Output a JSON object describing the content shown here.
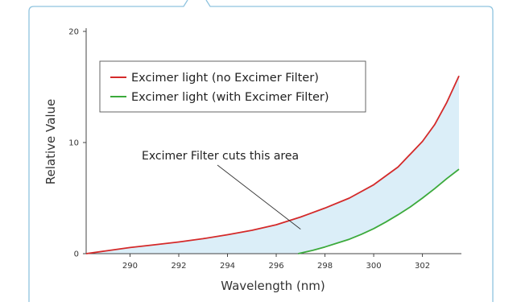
{
  "chart_data": {
    "type": "area",
    "title": "",
    "xlabel": "Wavelength (nm)",
    "ylabel": "Relative Value",
    "xlim": [
      288.2,
      303.6
    ],
    "ylim": [
      0,
      20
    ],
    "x_ticks": [
      290,
      292,
      294,
      296,
      298,
      300,
      302
    ],
    "y_ticks": [
      0,
      10,
      20
    ],
    "grid": false,
    "legend_position": "top-left",
    "series": [
      {
        "name": "Excimer light (no Excimer Filter)",
        "color": "#d42a2a",
        "x": [
          288.2,
          289,
          290,
          291,
          292,
          293,
          294,
          295,
          296,
          297,
          298,
          299,
          300,
          301,
          302,
          302.5,
          303,
          303.5
        ],
        "y": [
          0,
          0.25,
          0.55,
          0.8,
          1.05,
          1.35,
          1.7,
          2.1,
          2.6,
          3.3,
          4.1,
          5.0,
          6.2,
          7.8,
          10.1,
          11.6,
          13.6,
          16.0
        ]
      },
      {
        "name": "Excimer light (with Excimer Filter)",
        "color": "#3caa3c",
        "x": [
          296.9,
          297.5,
          298,
          298.5,
          299,
          299.5,
          300,
          300.5,
          301,
          301.5,
          302,
          302.5,
          303,
          303.5
        ],
        "y": [
          0,
          0.3,
          0.6,
          0.95,
          1.3,
          1.75,
          2.25,
          2.85,
          3.5,
          4.2,
          5.0,
          5.85,
          6.75,
          7.6
        ]
      }
    ],
    "annotations": [
      {
        "text": "Excimer Filter cuts this area",
        "point_x": 297,
        "point_y": 2.2
      }
    ],
    "fill_color": "#dbeef8"
  }
}
